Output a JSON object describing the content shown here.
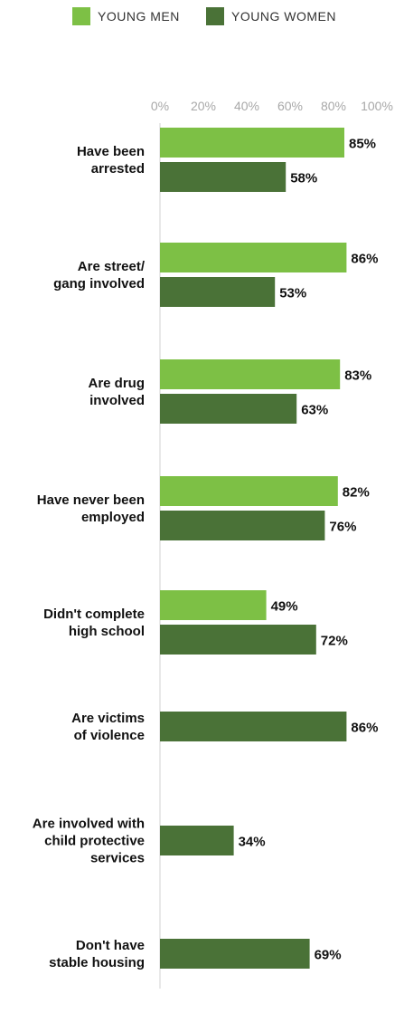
{
  "chart_data": {
    "type": "bar",
    "orientation": "horizontal",
    "title": "",
    "xlabel": "",
    "ylabel": "",
    "xlim": [
      0,
      100
    ],
    "tick_labels": [
      "0%",
      "20%",
      "40%",
      "60%",
      "80%",
      "100%"
    ],
    "legend_position": "top",
    "grid": false,
    "categories": [
      [
        "Have been",
        "arrested"
      ],
      [
        "Are street/",
        "gang involved"
      ],
      [
        "Are drug",
        "involved"
      ],
      [
        "Have never been",
        "employed"
      ],
      [
        "Didn't complete",
        "high school"
      ],
      [
        "Are victims",
        "of violence"
      ],
      [
        "Are involved with",
        "child protective",
        "services"
      ],
      [
        "Don't have",
        "stable housing"
      ]
    ],
    "series": [
      {
        "name": "YOUNG MEN",
        "color": "#7dc045",
        "values": [
          85,
          86,
          83,
          82,
          49,
          null,
          null,
          null
        ],
        "labels": [
          "85%",
          "86%",
          "83%",
          "82%",
          "49%",
          null,
          null,
          null
        ]
      },
      {
        "name": "YOUNG WOMEN",
        "color": "#4a7237",
        "values": [
          58,
          53,
          63,
          76,
          72,
          86,
          34,
          69
        ],
        "labels": [
          "58%",
          "53%",
          "63%",
          "76%",
          "72%",
          "86%",
          "34%",
          "69%"
        ]
      }
    ]
  }
}
